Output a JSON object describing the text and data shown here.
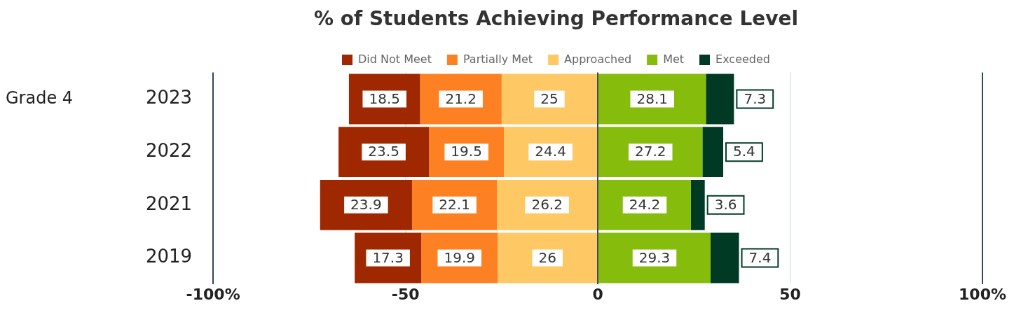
{
  "chart_data": {
    "type": "bar",
    "orientation": "horizontal",
    "title": "% of Students Achieving Performance Level",
    "ylabel": "Grade 4",
    "categories": [
      "2023",
      "2022",
      "2021",
      "2019"
    ],
    "series": [
      {
        "name": "Did Not Meet",
        "color": "#a02800",
        "values": [
          18.5,
          23.5,
          23.9,
          17.3
        ],
        "base": [
          -64.7,
          -67.4,
          -72.2,
          -63.2
        ]
      },
      {
        "name": "Partially Met",
        "color": "#fd8122",
        "values": [
          21.2,
          19.5,
          22.1,
          19.9
        ],
        "base": [
          -46.2,
          -43.9,
          -48.3,
          -45.9
        ]
      },
      {
        "name": "Approached",
        "color": "#fec865",
        "values": [
          25,
          24.4,
          26.2,
          26
        ],
        "base": [
          -25,
          -24.4,
          -26.2,
          -26
        ]
      },
      {
        "name": "Met",
        "color": "#86bc0c",
        "values": [
          28.1,
          27.2,
          24.2,
          29.3
        ],
        "base": [
          0,
          0,
          0,
          0
        ]
      },
      {
        "name": "Exceeded",
        "color": "#003a25",
        "values": [
          7.3,
          5.4,
          3.6,
          7.4
        ],
        "base": [
          28.1,
          27.2,
          24.2,
          29.3
        ]
      }
    ],
    "xlim": [
      -100,
      100
    ],
    "xticks": [
      {
        "value": -100,
        "label": "-100%"
      },
      -50,
      0,
      50,
      {
        "value": 100,
        "label": "100%"
      }
    ],
    "grid": "x",
    "legend": "top",
    "data_labels": true
  }
}
